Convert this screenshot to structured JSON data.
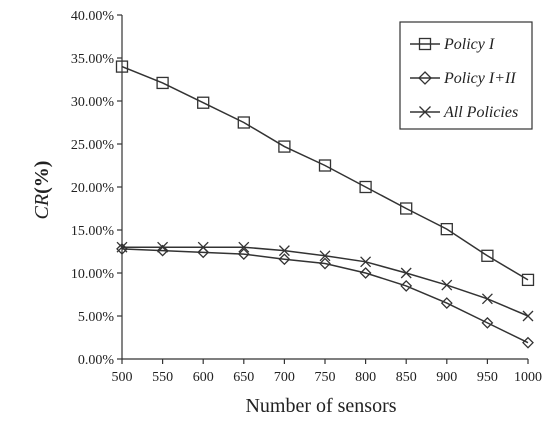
{
  "chart_data": {
    "type": "line",
    "xlabel": "Number of sensors",
    "ylabel_main": "CR",
    "ylabel_unit": "(%)",
    "x": [
      500,
      550,
      600,
      650,
      700,
      750,
      800,
      850,
      900,
      950,
      1000
    ],
    "x_ticks": [
      "500",
      "550",
      "600",
      "650",
      "700",
      "750",
      "800",
      "850",
      "900",
      "950",
      "1000"
    ],
    "ylim": [
      0,
      40
    ],
    "y_tick_values": [
      0,
      5,
      10,
      15,
      20,
      25,
      30,
      35,
      40
    ],
    "y_ticks": [
      "0.00%",
      "5.00%",
      "10.00%",
      "15.00%",
      "20.00%",
      "25.00%",
      "30.00%",
      "35.00%",
      "40.00%"
    ],
    "grid": false,
    "legend_position": "top-right",
    "series": [
      {
        "name": "Policy I",
        "marker": "square",
        "values": [
          34.0,
          32.1,
          29.8,
          27.5,
          24.7,
          22.5,
          20.0,
          17.5,
          15.1,
          12.0,
          9.2
        ]
      },
      {
        "name": "Policy I+II",
        "marker": "diamond",
        "values": [
          12.8,
          12.6,
          12.4,
          12.2,
          11.6,
          11.1,
          10.0,
          8.5,
          6.5,
          4.2,
          1.9
        ]
      },
      {
        "name": "All Policies",
        "marker": "x",
        "values": [
          13.0,
          13.0,
          13.0,
          13.0,
          12.6,
          12.0,
          11.3,
          10.0,
          8.6,
          7.0,
          5.0
        ]
      }
    ]
  }
}
